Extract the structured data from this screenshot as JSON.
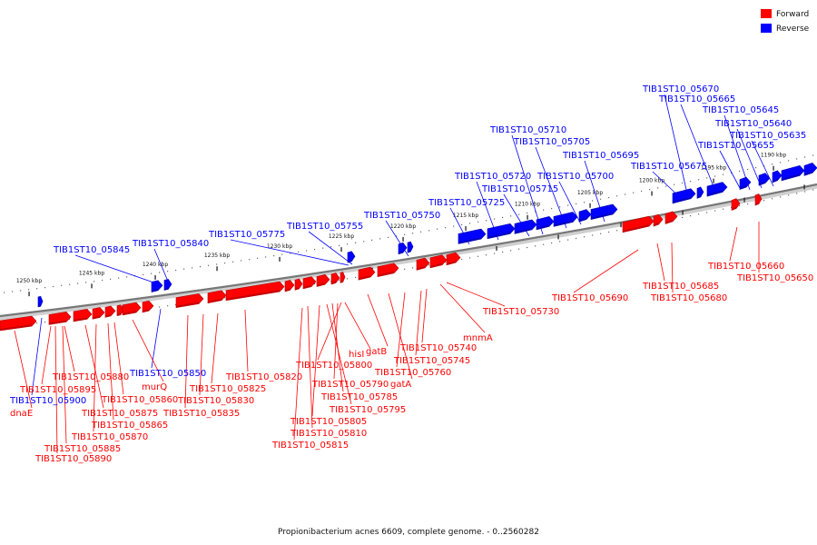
{
  "legend": {
    "forward_label": "Forward",
    "reverse_label": "Reverse",
    "forward_color": "#ff0000",
    "reverse_color": "#0000ff"
  },
  "caption": "Propionibacterium acnes 6609, complete genome. - 0..2560282",
  "ticks": [
    {
      "label": "1250 kbp"
    },
    {
      "label": "1245 kbp"
    },
    {
      "label": "1240 kbp"
    },
    {
      "label": "1235 kbp"
    },
    {
      "label": "1230 kbp"
    },
    {
      "label": "1225 kbp"
    },
    {
      "label": "1220 kbp"
    },
    {
      "label": "1215 kbp"
    },
    {
      "label": "1210 kbp"
    },
    {
      "label": "1205 kbp"
    },
    {
      "label": "1200 kbp"
    },
    {
      "label": "1195 kbp"
    },
    {
      "label": "1190 kbp"
    }
  ],
  "reverse_labels": [
    {
      "text": "TIB1ST10_05670"
    },
    {
      "text": "TIB1ST10_05665"
    },
    {
      "text": "TIB1ST10_05645"
    },
    {
      "text": "TIB1ST10_05640"
    },
    {
      "text": "TIB1ST10_05635"
    },
    {
      "text": "TIB1ST10_05655"
    },
    {
      "text": "TIB1ST10_05675"
    },
    {
      "text": "TIB1ST10_05710"
    },
    {
      "text": "TIB1ST10_05705"
    },
    {
      "text": "TIB1ST10_05695"
    },
    {
      "text": "TIB1ST10_05700"
    },
    {
      "text": "TIB1ST10_05720"
    },
    {
      "text": "TIB1ST10_05715"
    },
    {
      "text": "TIB1ST10_05725"
    },
    {
      "text": "TIB1ST10_05750"
    },
    {
      "text": "TIB1ST10_05755"
    },
    {
      "text": "TIB1ST10_05775"
    },
    {
      "text": "TIB1ST10_05840"
    },
    {
      "text": "TIB1ST10_05845"
    },
    {
      "text": "TIB1ST10_05850"
    },
    {
      "text": "TIB1ST10_05900"
    }
  ],
  "forward_labels": [
    {
      "text": "TIB1ST10_05660"
    },
    {
      "text": "TIB1ST10_05650"
    },
    {
      "text": "TIB1ST10_05685"
    },
    {
      "text": "TIB1ST10_05680"
    },
    {
      "text": "TIB1ST10_05690"
    },
    {
      "text": "TIB1ST10_05730"
    },
    {
      "text": "mnmA"
    },
    {
      "text": "TIB1ST10_05740"
    },
    {
      "text": "TIB1ST10_05745"
    },
    {
      "text": "TIB1ST10_05760"
    },
    {
      "text": "gatA"
    },
    {
      "text": "gatB"
    },
    {
      "text": "hisI"
    },
    {
      "text": "TIB1ST10_05800"
    },
    {
      "text": "TIB1ST10_05790"
    },
    {
      "text": "TIB1ST10_05785"
    },
    {
      "text": "TIB1ST10_05795"
    },
    {
      "text": "TIB1ST10_05805"
    },
    {
      "text": "TIB1ST10_05810"
    },
    {
      "text": "TIB1ST10_05815"
    },
    {
      "text": "TIB1ST10_05820"
    },
    {
      "text": "TIB1ST10_05825"
    },
    {
      "text": "TIB1ST10_05830"
    },
    {
      "text": "TIB1ST10_05835"
    },
    {
      "text": "murQ"
    },
    {
      "text": "TIB1ST10_05860"
    },
    {
      "text": "TIB1ST10_05865"
    },
    {
      "text": "TIB1ST10_05870"
    },
    {
      "text": "TIB1ST10_05875"
    },
    {
      "text": "TIB1ST10_05880"
    },
    {
      "text": "TIB1ST10_05885"
    },
    {
      "text": "TIB1ST10_05890"
    },
    {
      "text": "TIB1ST10_05895"
    },
    {
      "text": "dnaE"
    }
  ]
}
